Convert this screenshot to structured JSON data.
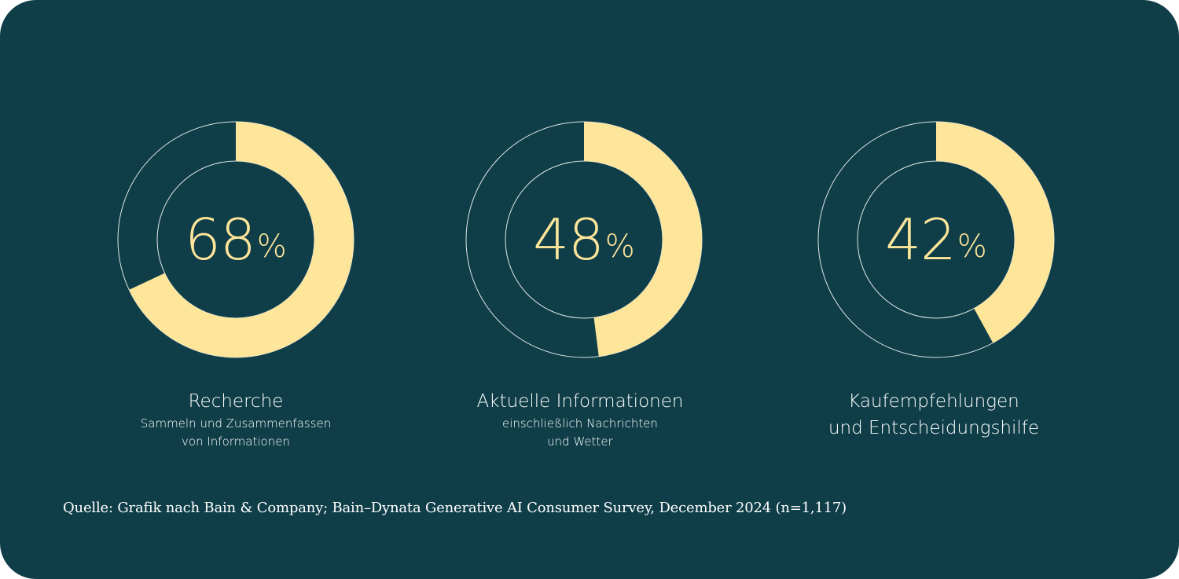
{
  "colors": {
    "background": "#0f3e48",
    "accent": "#fde59a",
    "track": "#dfe6e8",
    "text": "#ffffff"
  },
  "chart_data": [
    {
      "type": "pie",
      "value": 68,
      "value_label": "68",
      "unit": "%",
      "title": "Recherche",
      "subtitle_lines": [
        "Sammeln und Zusammenfassen",
        "von Informationen"
      ]
    },
    {
      "type": "pie",
      "value": 48,
      "value_label": "48",
      "unit": "%",
      "title": "Aktuelle Informationen",
      "subtitle_lines": [
        "einschließlich Nachrichten",
        "und Wetter"
      ]
    },
    {
      "type": "pie",
      "value": 42,
      "value_label": "42",
      "unit": "%",
      "title_lines": [
        "Kaufempfehlungen",
        "und Entscheidungshilfe"
      ]
    }
  ],
  "source": "Quelle: Grafik nach Bain & Company; Bain–Dynata Generative AI Consumer Survey, December 2024 (n=1,117)"
}
